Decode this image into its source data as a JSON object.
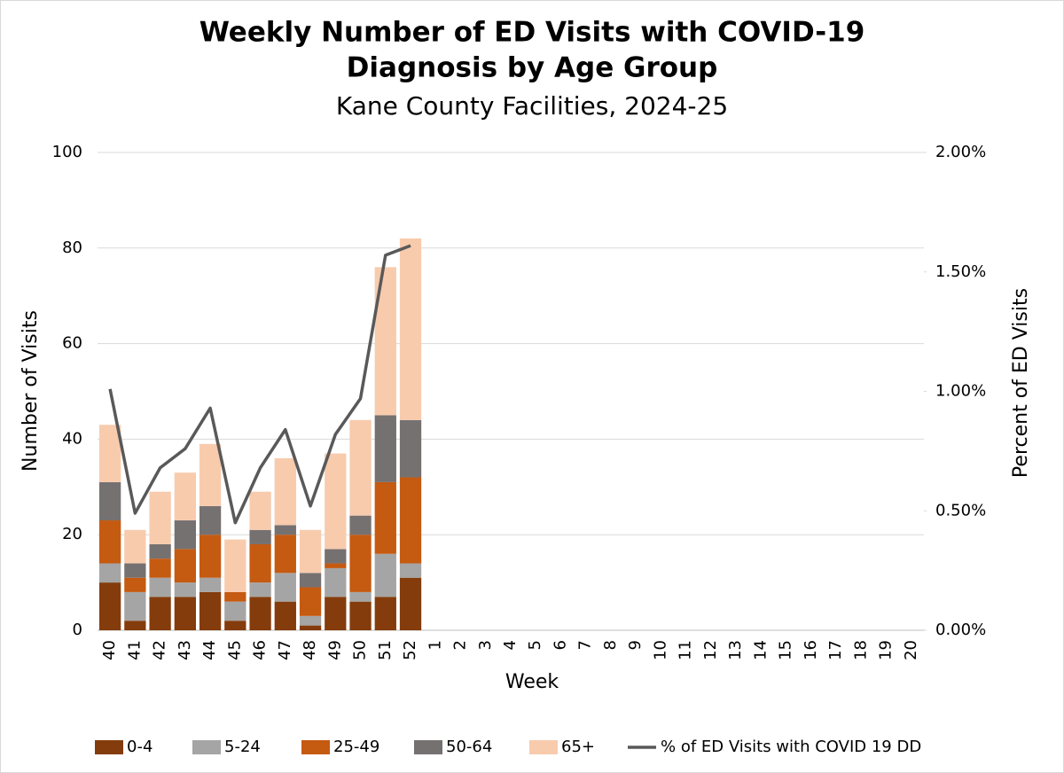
{
  "chart_data": {
    "type": "bar",
    "stacked": true,
    "title": [
      "Weekly Number of ED Visits with COVID-19",
      "Diagnosis by Age Group"
    ],
    "subtitle": "Kane County Facilities, 2024-25",
    "x_label": "Week",
    "y_label": "Number of Visits",
    "y2_label": "Percent of ED Visits",
    "categories": [
      "40",
      "41",
      "42",
      "43",
      "44",
      "45",
      "46",
      "47",
      "48",
      "49",
      "50",
      "51",
      "52",
      "1",
      "2",
      "3",
      "4",
      "5",
      "6",
      "7",
      "8",
      "9",
      "10",
      "11",
      "12",
      "13",
      "14",
      "15",
      "16",
      "17",
      "18",
      "19",
      "20"
    ],
    "series": [
      {
        "name": "0-4",
        "color": "#843c0c",
        "values": [
          10,
          2,
          7,
          7,
          8,
          2,
          7,
          6,
          1,
          7,
          6,
          7,
          11,
          null,
          null,
          null,
          null,
          null,
          null,
          null,
          null,
          null,
          null,
          null,
          null,
          null,
          null,
          null,
          null,
          null,
          null,
          null,
          null
        ]
      },
      {
        "name": "5-24",
        "color": "#a5a5a5",
        "values": [
          4,
          6,
          4,
          3,
          3,
          4,
          3,
          6,
          2,
          6,
          2,
          9,
          3,
          null,
          null,
          null,
          null,
          null,
          null,
          null,
          null,
          null,
          null,
          null,
          null,
          null,
          null,
          null,
          null,
          null,
          null,
          null,
          null
        ]
      },
      {
        "name": "25-49",
        "color": "#c55a11",
        "values": [
          9,
          3,
          4,
          7,
          9,
          2,
          8,
          8,
          6,
          1,
          12,
          15,
          18,
          null,
          null,
          null,
          null,
          null,
          null,
          null,
          null,
          null,
          null,
          null,
          null,
          null,
          null,
          null,
          null,
          null,
          null,
          null,
          null
        ]
      },
      {
        "name": "50-64",
        "color": "#767171",
        "values": [
          8,
          3,
          3,
          6,
          6,
          0,
          3,
          2,
          3,
          3,
          4,
          14,
          12,
          null,
          null,
          null,
          null,
          null,
          null,
          null,
          null,
          null,
          null,
          null,
          null,
          null,
          null,
          null,
          null,
          null,
          null,
          null,
          null
        ]
      },
      {
        "name": "65+",
        "color": "#f8cbad",
        "values": [
          12,
          7,
          11,
          10,
          13,
          11,
          8,
          14,
          9,
          20,
          20,
          31,
          38,
          null,
          null,
          null,
          null,
          null,
          null,
          null,
          null,
          null,
          null,
          null,
          null,
          null,
          null,
          null,
          null,
          null,
          null,
          null,
          null
        ]
      },
      {
        "name": "% of ED Visits with COVID 19 DD",
        "color": "#595959",
        "type": "line",
        "axis": "y2",
        "values": [
          1.01,
          0.49,
          0.68,
          0.76,
          0.93,
          0.45,
          0.68,
          0.84,
          0.52,
          0.82,
          0.97,
          1.57,
          1.61,
          null,
          null,
          null,
          null,
          null,
          null,
          null,
          null,
          null,
          null,
          null,
          null,
          null,
          null,
          null,
          null,
          null,
          null,
          null,
          null
        ]
      }
    ],
    "ylim": [
      0,
      100
    ],
    "yticks": [
      0,
      20,
      40,
      60,
      80,
      100
    ],
    "y2lim": [
      0,
      2
    ],
    "y2ticks": [
      {
        "value": 0,
        "label": "0.00%"
      },
      {
        "value": 0.5,
        "label": "0.50%"
      },
      {
        "value": 1,
        "label": "1.00%"
      },
      {
        "value": 1.5,
        "label": "1.50%"
      },
      {
        "value": 2,
        "label": "2.00%"
      }
    ],
    "grid": true,
    "legend": "bottom"
  }
}
